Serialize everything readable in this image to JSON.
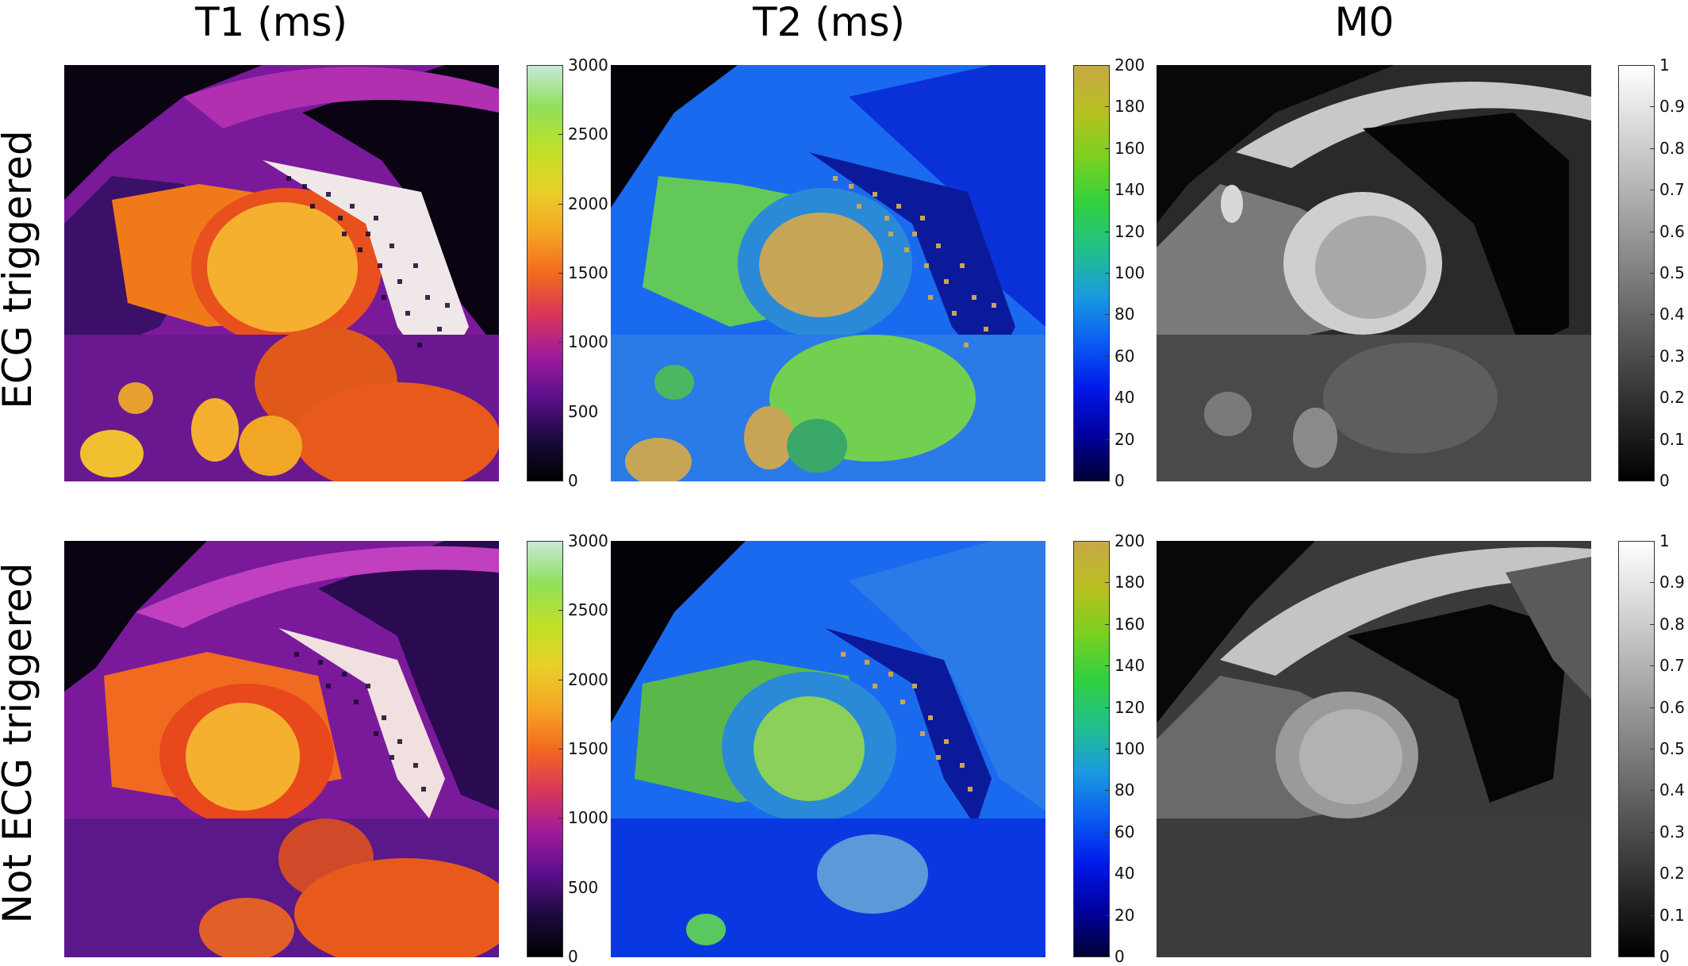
{
  "columns": [
    {
      "title": "T1 (ms)",
      "colorbar": {
        "min": 0,
        "max": 3000,
        "ticks": [
          "3000",
          "2500",
          "2000",
          "1500",
          "1000",
          "500",
          "0"
        ],
        "colors": [
          "#000000",
          "#1b0a3e",
          "#5a0f8c",
          "#a01a9a",
          "#d8365a",
          "#f26a1e",
          "#f5a623",
          "#e8d02a",
          "#bfe028",
          "#8fe05a",
          "#c8e8d8"
        ]
      }
    },
    {
      "title": "T2 (ms)",
      "colorbar": {
        "min": 0,
        "max": 200,
        "ticks": [
          "200",
          "180",
          "160",
          "140",
          "120",
          "100",
          "80",
          "60",
          "40",
          "20",
          "0"
        ],
        "colors": [
          "#000033",
          "#0000a0",
          "#0018e8",
          "#0a5cf2",
          "#1a9ae0",
          "#20c08a",
          "#30d040",
          "#7ad020",
          "#b8c020",
          "#c8a848"
        ]
      }
    },
    {
      "title": "M0",
      "colorbar": {
        "min": 0,
        "max": 1,
        "ticks": [
          "1",
          "0.9",
          "0.8",
          "0.7",
          "0.6",
          "0.5",
          "0.4",
          "0.3",
          "0.2",
          "0.1",
          "0"
        ],
        "colors": [
          "#000000",
          "#ffffff"
        ]
      }
    }
  ],
  "rows": [
    {
      "label": "ECG triggered"
    },
    {
      "label": "Not ECG triggered"
    }
  ]
}
